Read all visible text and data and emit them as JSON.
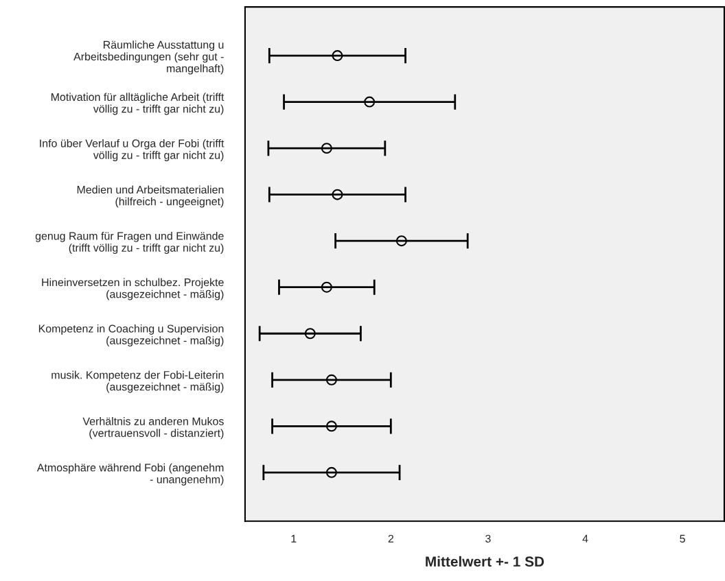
{
  "chart_data": {
    "type": "scatter",
    "orientation": "horizontal",
    "xlabel": "Mittelwert +- 1 SD",
    "categories": [
      "Räumliche Ausstattung u\nArbeitsbedingungen (sehr gut -\nmangelhaft)",
      "Motivation für alltägliche Arbeit (trifft\nvöllig zu - trifft gar nicht zu)",
      "Info über Verlauf u Orga der Fobi (trifft\nvöllig zu - trifft gar nicht zu)",
      "Medien und Arbeitsmaterialien\n(hilfreich - ungeeignet)",
      "genug Raum für Fragen und Einwände\n(trifft völlig zu - trifft gar nicht zu)",
      "Hineinversetzen in schulbez. Projekte\n(ausgezeichnet - mäßig)",
      "Kompetenz in Coaching u Supervision\n(ausgezeichnet - maßig)",
      "musik. Kompetenz der Fobi-Leiterin\n(ausgezeichnet - mäßig)",
      "Verhältnis zu anderen Mukos\n(vertrauensvoll - distanziert)",
      "Atmosphäre während Fobi (angenehm\n- unangenehm)"
    ],
    "values": [
      1.45,
      1.78,
      1.34,
      1.45,
      2.11,
      1.34,
      1.17,
      1.39,
      1.39,
      1.39
    ],
    "errors": [
      0.7,
      0.88,
      0.6,
      0.7,
      0.68,
      0.49,
      0.52,
      0.61,
      0.61,
      0.7
    ],
    "color": "#000000",
    "marker": "circle",
    "xlim": [
      0.5,
      5.43
    ],
    "xticks": [
      1,
      2,
      3,
      4,
      5
    ],
    "grid": false
  }
}
